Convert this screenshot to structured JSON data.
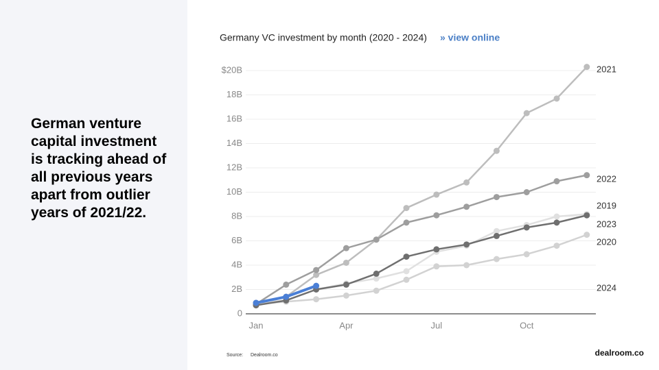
{
  "slide": {
    "heading": "German venture capital investment is tracking ahead of all previous years apart from outlier years of 2021/22.",
    "source_label": "Source:",
    "source": "Dealroom.co",
    "logo": "dealroom.co"
  },
  "chart_data": {
    "type": "line",
    "title": "Germany VC investment by month (2020 - 2024)",
    "link": "» view online",
    "categories": [
      "Jan",
      null,
      null,
      "Apr",
      null,
      null,
      "Jul",
      null,
      null,
      "Oct",
      null,
      null
    ],
    "ylim": [
      0,
      20
    ],
    "yticks": [
      0,
      {
        "value": 2,
        "label": "2B"
      },
      {
        "value": 4,
        "label": "4B"
      },
      {
        "value": 6,
        "label": "6B"
      },
      {
        "value": 8,
        "label": "8B"
      },
      {
        "value": 10,
        "label": "10B"
      },
      {
        "value": 12,
        "label": "12B"
      },
      {
        "value": 14,
        "label": "14B"
      },
      {
        "value": 16,
        "label": "16B"
      },
      {
        "value": 18,
        "label": "18B"
      },
      {
        "value": 20,
        "label": "$20B"
      }
    ],
    "grid": true,
    "series": [
      {
        "name": "2019",
        "color": "#e0e0e0",
        "values": [
          0.9,
          1.1,
          2.0,
          2.5,
          2.9,
          3.5,
          5.1,
          5.6,
          6.8,
          7.3,
          8.0,
          8.2
        ]
      },
      {
        "name": "2020",
        "color": "#d2d2d2",
        "values": [
          0.8,
          1.0,
          1.2,
          1.5,
          1.9,
          2.8,
          3.9,
          4.0,
          4.5,
          4.9,
          5.6,
          6.5
        ]
      },
      {
        "name": "2021",
        "color": "#bdbdbd",
        "values": [
          0.9,
          1.4,
          3.2,
          4.2,
          6.1,
          8.7,
          9.8,
          10.8,
          13.4,
          16.5,
          17.7,
          20.3
        ]
      },
      {
        "name": "2022",
        "color": "#9e9e9e",
        "values": [
          0.8,
          2.4,
          3.6,
          5.4,
          6.1,
          7.5,
          8.1,
          8.8,
          9.6,
          10.0,
          10.9,
          11.4
        ]
      },
      {
        "name": "2023",
        "color": "#6f6f6f",
        "values": [
          0.7,
          1.1,
          2.0,
          2.4,
          3.3,
          4.7,
          5.3,
          5.7,
          6.4,
          7.1,
          7.5,
          8.1
        ]
      },
      {
        "name": "2024",
        "color": "#4a7fd6",
        "values": [
          0.9,
          1.4,
          2.3,
          null,
          null,
          null,
          null,
          null,
          null,
          null,
          null,
          null
        ]
      }
    ]
  }
}
